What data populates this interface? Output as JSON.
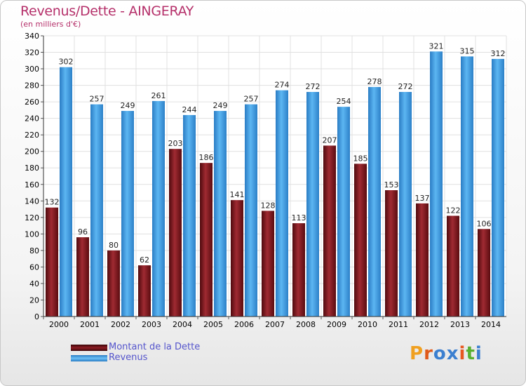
{
  "chart_data": {
    "type": "bar",
    "title": "Revenus/Dette - AINGERAY",
    "subtitle": "(en milliers d'€)",
    "categories": [
      "2000",
      "2001",
      "2002",
      "2003",
      "2004",
      "2005",
      "2006",
      "2007",
      "2008",
      "2009",
      "2010",
      "2011",
      "2012",
      "2013",
      "2014"
    ],
    "series": [
      {
        "name": "Montant de la Dette",
        "values": [
          132,
          96,
          80,
          62,
          203,
          186,
          141,
          128,
          113,
          207,
          185,
          153,
          137,
          122,
          106
        ],
        "color": "#7a1419"
      },
      {
        "name": "Revenus",
        "values": [
          302,
          257,
          249,
          261,
          244,
          249,
          257,
          274,
          272,
          254,
          278,
          272,
          321,
          315,
          312
        ],
        "color": "#3d9be0"
      }
    ],
    "ylim": [
      0,
      340
    ],
    "yticks": [
      0,
      20,
      40,
      60,
      80,
      100,
      120,
      140,
      160,
      180,
      200,
      220,
      240,
      260,
      280,
      300,
      320,
      340
    ],
    "grid": true,
    "legend_position": "bottom-left"
  },
  "branding": {
    "logo_text": "Proxiti",
    "logo_colors": [
      "#f0a020",
      "#e05a1a",
      "#3b7fd0",
      "#3b7fd0",
      "#e85820",
      "#58b030",
      "#3b7fd0"
    ]
  },
  "colors": {
    "title": "#b5306a",
    "grid": "#e0e0e0",
    "plot_background": "#ffffff"
  }
}
